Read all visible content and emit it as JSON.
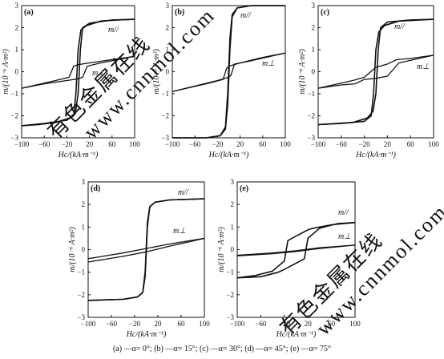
{
  "figure": {
    "caption": "(a) —α= 0°; (b) —α= 15°; (c) —α= 30°; (d) —α= 45°; (e) —α= 75°",
    "watermark": [
      "有色金属在线",
      "www.cnnmol.com"
    ]
  },
  "chart_data": [
    {
      "type": "line",
      "panel_label": "(a)",
      "xlabel": "Hc/(kA·m⁻¹)",
      "ylabel": "m/(10⁻⁶ A·m²)",
      "xlim": [
        -100,
        100
      ],
      "ylim": [
        -3,
        3
      ],
      "xticks": [
        -100,
        -60,
        -20,
        20,
        60,
        100
      ],
      "yticks": [
        -3,
        -2,
        -1,
        0,
        1,
        2,
        3
      ],
      "series": [
        {
          "name": "m//",
          "branches": [
            [
              [
                -100,
                -2.45
              ],
              [
                -60,
                -2.35
              ],
              [
                -20,
                -2.2
              ],
              [
                -8,
                -2.0
              ],
              [
                -4,
                -1.0
              ],
              [
                0,
                1.0
              ],
              [
                5,
                1.9
              ],
              [
                15,
                2.1
              ],
              [
                40,
                2.3
              ],
              [
                70,
                2.35
              ],
              [
                100,
                2.38
              ]
            ],
            [
              [
                100,
                2.38
              ],
              [
                60,
                2.35
              ],
              [
                20,
                2.2
              ],
              [
                8,
                2.0
              ],
              [
                4,
                1.0
              ],
              [
                0,
                -1.0
              ],
              [
                -5,
                -1.9
              ],
              [
                -15,
                -2.1
              ],
              [
                -40,
                -2.3
              ],
              [
                -70,
                -2.4
              ],
              [
                -100,
                -2.45
              ]
            ]
          ]
        },
        {
          "name": "m⊥",
          "branches": [
            [
              [
                -100,
                -0.75
              ],
              [
                -40,
                -0.4
              ],
              [
                -16,
                -0.25
              ],
              [
                -8,
                0.25
              ],
              [
                0,
                0.32
              ],
              [
                20,
                0.4
              ],
              [
                60,
                0.55
              ],
              [
                100,
                0.7
              ]
            ],
            [
              [
                100,
                0.7
              ],
              [
                40,
                0.4
              ],
              [
                16,
                0.25
              ],
              [
                8,
                -0.25
              ],
              [
                0,
                -0.32
              ],
              [
                -20,
                -0.4
              ],
              [
                -60,
                -0.55
              ],
              [
                -100,
                -0.75
              ]
            ]
          ]
        }
      ]
    },
    {
      "type": "line",
      "panel_label": "(b)",
      "xlabel": "Hc/(kA·m⁻¹)",
      "ylabel": "m/(10⁻⁶ A·m²)",
      "xlim": [
        -100,
        100
      ],
      "ylim": [
        -3,
        3
      ],
      "xticks": [
        -100,
        -60,
        -20,
        20,
        60,
        100
      ],
      "yticks": [
        -3,
        -2,
        -1,
        0,
        1,
        2,
        3
      ],
      "series": [
        {
          "name": "m//",
          "branches": [
            [
              [
                -100,
                -3.0
              ],
              [
                -40,
                -3.0
              ],
              [
                -15,
                -2.9
              ],
              [
                -6,
                -2.5
              ],
              [
                -2,
                -1.0
              ],
              [
                2,
                1.5
              ],
              [
                6,
                2.6
              ],
              [
                15,
                2.9
              ],
              [
                40,
                3.0
              ],
              [
                100,
                3.0
              ]
            ],
            [
              [
                100,
                3.0
              ],
              [
                40,
                3.0
              ],
              [
                15,
                2.9
              ],
              [
                6,
                2.5
              ],
              [
                2,
                1.0
              ],
              [
                -2,
                -1.5
              ],
              [
                -6,
                -2.6
              ],
              [
                -15,
                -2.9
              ],
              [
                -40,
                -3.0
              ],
              [
                -100,
                -3.0
              ]
            ]
          ]
        },
        {
          "name": "m⊥",
          "branches": [
            [
              [
                -100,
                -0.9
              ],
              [
                -40,
                -0.55
              ],
              [
                -10,
                -0.35
              ],
              [
                -4,
                0.15
              ],
              [
                0,
                0.25
              ],
              [
                20,
                0.4
              ],
              [
                60,
                0.65
              ],
              [
                100,
                0.85
              ]
            ],
            [
              [
                100,
                0.85
              ],
              [
                40,
                0.5
              ],
              [
                10,
                0.35
              ],
              [
                4,
                -0.15
              ],
              [
                0,
                -0.25
              ],
              [
                -20,
                -0.4
              ],
              [
                -60,
                -0.65
              ],
              [
                -100,
                -0.9
              ]
            ]
          ]
        }
      ]
    },
    {
      "type": "line",
      "panel_label": "(c)",
      "xlabel": "Hc/(kA·m⁻¹)",
      "ylabel": "m/(10⁻⁶ A·m²)",
      "xlim": [
        -100,
        100
      ],
      "ylim": [
        -3,
        3
      ],
      "xticks": [
        -100,
        -60,
        -20,
        20,
        60,
        100
      ],
      "yticks": [
        -3,
        -2,
        -1,
        0,
        1,
        2,
        3
      ],
      "series": [
        {
          "name": "m//",
          "branches": [
            [
              [
                -100,
                -2.4
              ],
              [
                -60,
                -2.35
              ],
              [
                -20,
                -2.25
              ],
              [
                -8,
                -2.0
              ],
              [
                -4,
                -1.0
              ],
              [
                0,
                1.0
              ],
              [
                5,
                1.8
              ],
              [
                15,
                2.1
              ],
              [
                40,
                2.3
              ],
              [
                100,
                2.38
              ]
            ],
            [
              [
                100,
                2.38
              ],
              [
                60,
                2.35
              ],
              [
                20,
                2.25
              ],
              [
                8,
                2.0
              ],
              [
                4,
                1.0
              ],
              [
                0,
                -1.0
              ],
              [
                -5,
                -1.8
              ],
              [
                -15,
                -2.1
              ],
              [
                -40,
                -2.3
              ],
              [
                -100,
                -2.4
              ]
            ]
          ]
        },
        {
          "name": "m⊥",
          "branches": [
            [
              [
                -100,
                -0.75
              ],
              [
                -40,
                -0.4
              ],
              [
                -20,
                -0.25
              ],
              [
                0,
                0.2
              ],
              [
                20,
                0.35
              ],
              [
                36,
                0.55
              ],
              [
                60,
                0.6
              ],
              [
                100,
                0.75
              ]
            ],
            [
              [
                100,
                0.75
              ],
              [
                40,
                0.4
              ],
              [
                20,
                -0.2
              ],
              [
                0,
                -0.3
              ],
              [
                -20,
                -0.35
              ],
              [
                -36,
                -0.55
              ],
              [
                -60,
                -0.6
              ],
              [
                -100,
                -0.75
              ]
            ]
          ]
        }
      ]
    },
    {
      "type": "line",
      "panel_label": "(d)",
      "xlabel": "Hc/(kA·m⁻¹)",
      "ylabel": "m/(10⁻⁶ A·m²)",
      "xlim": [
        -100,
        100
      ],
      "ylim": [
        -3,
        3
      ],
      "xticks": [
        -100,
        -60,
        -20,
        20,
        60,
        100
      ],
      "yticks": [
        -3,
        -2,
        -1,
        0,
        1,
        2,
        3
      ],
      "series": [
        {
          "name": "m//",
          "branches": [
            [
              [
                -100,
                -2.25
              ],
              [
                -40,
                -2.2
              ],
              [
                -15,
                -2.1
              ],
              [
                -6,
                -1.9
              ],
              [
                -2,
                -1.0
              ],
              [
                2,
                1.2
              ],
              [
                6,
                1.9
              ],
              [
                15,
                2.1
              ],
              [
                40,
                2.2
              ],
              [
                100,
                2.25
              ]
            ],
            [
              [
                100,
                2.25
              ],
              [
                40,
                2.2
              ],
              [
                15,
                2.1
              ],
              [
                6,
                1.9
              ],
              [
                2,
                1.0
              ],
              [
                -2,
                -1.2
              ],
              [
                -6,
                -1.9
              ],
              [
                -15,
                -2.1
              ],
              [
                -40,
                -2.2
              ],
              [
                -100,
                -2.25
              ]
            ]
          ]
        },
        {
          "name": "m⊥",
          "branches": [
            [
              [
                -100,
                -0.4
              ],
              [
                -40,
                -0.15
              ],
              [
                0,
                0.05
              ],
              [
                40,
                0.25
              ],
              [
                100,
                0.5
              ]
            ],
            [
              [
                100,
                0.5
              ],
              [
                40,
                0.15
              ],
              [
                0,
                -0.1
              ],
              [
                -40,
                -0.3
              ],
              [
                -100,
                -0.55
              ]
            ]
          ]
        }
      ]
    },
    {
      "type": "line",
      "panel_label": "(e)",
      "xlabel": "Hc/(kA·m⁻¹)",
      "ylabel": "m/(10⁻⁶ A·m²)",
      "xlim": [
        -100,
        100
      ],
      "ylim": [
        -3,
        3
      ],
      "xticks": [
        -100,
        -60,
        -20,
        20,
        60,
        100
      ],
      "yticks": [
        -3,
        -2,
        -1,
        0,
        1,
        2,
        3
      ],
      "series": [
        {
          "name": "m//",
          "branches": [
            [
              [
                -100,
                -1.25
              ],
              [
                -60,
                -1.2
              ],
              [
                -30,
                -1.0
              ],
              [
                -22,
                -0.9
              ],
              [
                0,
                -0.6
              ],
              [
                14,
                -0.4
              ],
              [
                20,
                0.5
              ],
              [
                40,
                0.95
              ],
              [
                70,
                1.15
              ],
              [
                100,
                1.2
              ]
            ],
            [
              [
                100,
                1.2
              ],
              [
                60,
                1.1
              ],
              [
                30,
                0.95
              ],
              [
                22,
                0.9
              ],
              [
                0,
                0.6
              ],
              [
                -14,
                0.4
              ],
              [
                -20,
                -0.5
              ],
              [
                -40,
                -0.95
              ],
              [
                -70,
                -1.15
              ],
              [
                -100,
                -1.25
              ]
            ]
          ]
        },
        {
          "name": "m⊥",
          "branches": [
            [
              [
                -100,
                -0.25
              ],
              [
                -40,
                -0.15
              ],
              [
                0,
                -0.05
              ],
              [
                40,
                0.08
              ],
              [
                100,
                0.2
              ]
            ],
            [
              [
                100,
                0.2
              ],
              [
                40,
                0.05
              ],
              [
                0,
                -0.08
              ],
              [
                -40,
                -0.18
              ],
              [
                -100,
                -0.28
              ]
            ]
          ]
        }
      ]
    }
  ]
}
